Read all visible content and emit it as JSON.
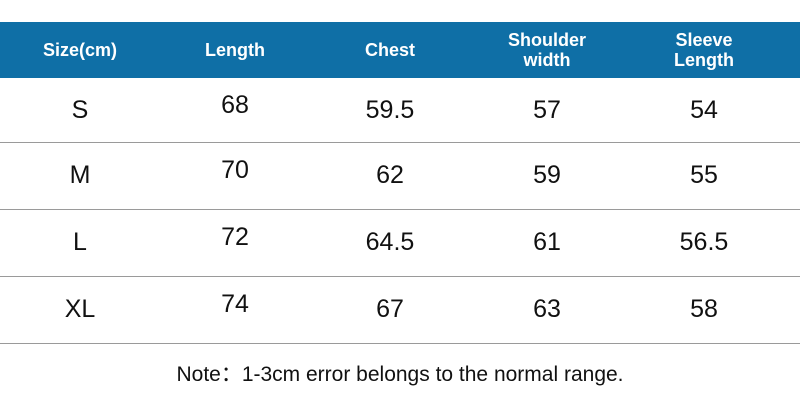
{
  "table": {
    "header": [
      "Size(cm)",
      "Length",
      "Chest",
      "Shoulder width",
      "Sleeve Length"
    ],
    "rows": [
      [
        "S",
        68,
        59.5,
        57,
        54
      ],
      [
        "M",
        70,
        62,
        59,
        55
      ],
      [
        "L",
        72,
        64.5,
        61,
        56.5
      ],
      [
        "XL",
        74,
        67,
        63,
        58
      ]
    ]
  },
  "note": "Note：1-3cm error belongs to the normal range."
}
